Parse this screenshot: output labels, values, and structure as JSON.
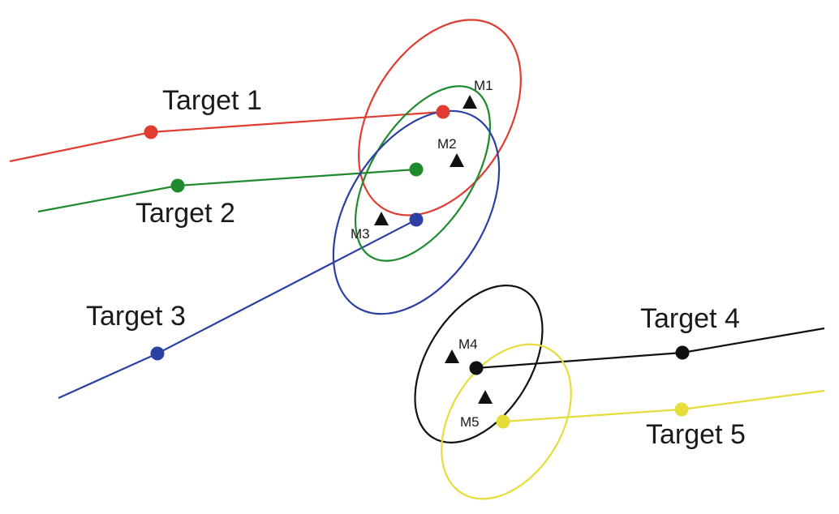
{
  "targets": [
    {
      "id": "t1",
      "label": "Target 1",
      "color": "#e03c31"
    },
    {
      "id": "t2",
      "label": "Target 2",
      "color": "#1f8a2e"
    },
    {
      "id": "t3",
      "label": "Target 3",
      "color": "#2c3fa3"
    },
    {
      "id": "t4",
      "label": "Target 4",
      "color": "#111111"
    },
    {
      "id": "t5",
      "label": "Target 5",
      "color": "#e4dd3a"
    }
  ],
  "measurements": [
    {
      "id": "m1",
      "label": "M1"
    },
    {
      "id": "m2",
      "label": "M2"
    },
    {
      "id": "m3",
      "label": "M3"
    },
    {
      "id": "m4",
      "label": "M4"
    },
    {
      "id": "m5",
      "label": "M5"
    }
  ]
}
